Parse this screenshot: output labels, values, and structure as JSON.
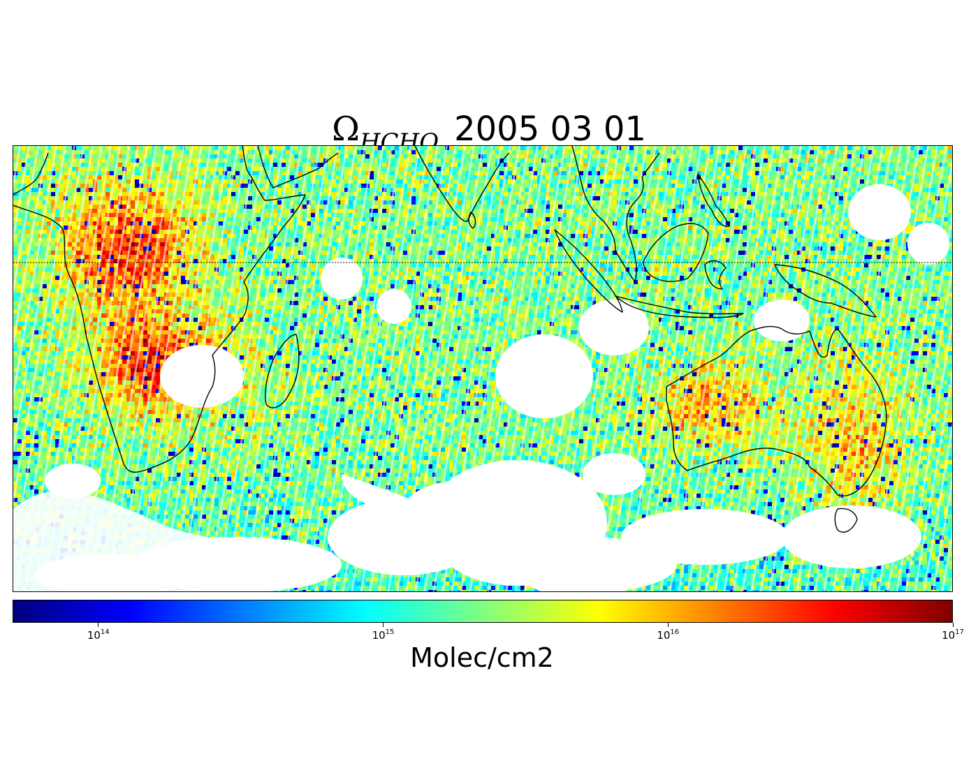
{
  "title": {
    "symbol": "Ω",
    "subscript": "HCHO",
    "date": "2005 03 01"
  },
  "map": {
    "variable": "HCHO total column",
    "reference_line": "equator (dotted)",
    "landmasses": [
      "Africa",
      "Madagascar",
      "Arabian Peninsula",
      "India",
      "Southeast Asia",
      "Maritime Continent",
      "New Guinea",
      "Australia",
      "Tasmania"
    ],
    "colors": {
      "coast": "#000000",
      "missing": "#ffffff"
    }
  },
  "colorbar": {
    "scale": "log",
    "min": 50000000000000,
    "max": 100000000000000000,
    "colormap": "jet",
    "ticks": [
      {
        "base": "10",
        "exp": "14"
      },
      {
        "base": "10",
        "exp": "15"
      },
      {
        "base": "10",
        "exp": "16"
      },
      {
        "base": "10",
        "exp": "17"
      }
    ],
    "label": "Molec/cm2"
  }
}
